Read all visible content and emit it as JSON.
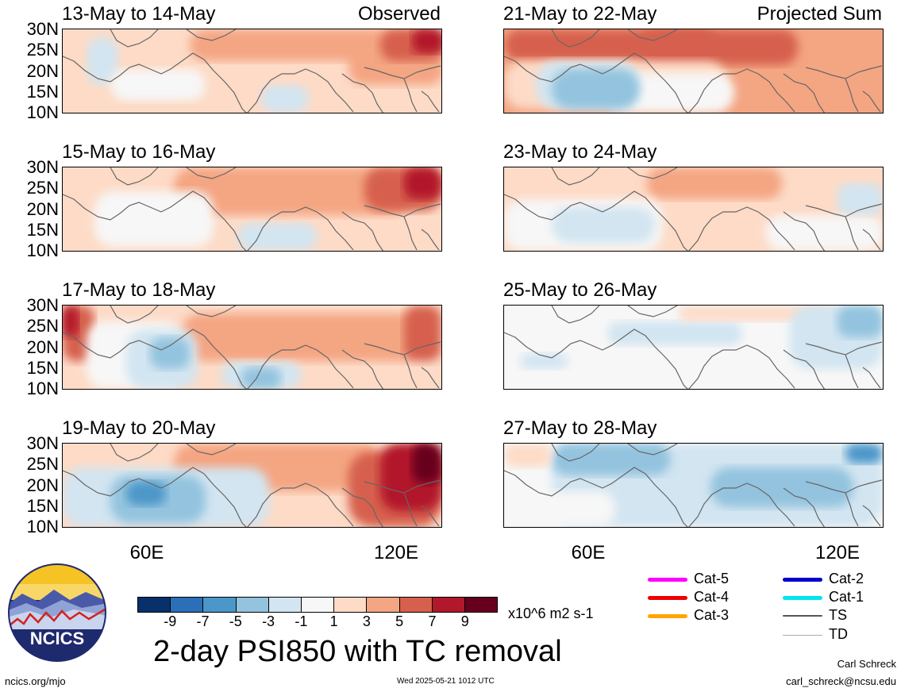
{
  "left_header_tag": "Observed",
  "right_header_tag": "Projected Sum",
  "y_tick_labels": [
    "30N",
    "25N",
    "20N",
    "15N",
    "10N"
  ],
  "x_tick_labels": [
    "60E",
    "120E"
  ],
  "panels": [
    {
      "title": "13-May to 14-May",
      "column": "left",
      "row": 0
    },
    {
      "title": "15-May to 16-May",
      "column": "left",
      "row": 1
    },
    {
      "title": "17-May to 18-May",
      "column": "left",
      "row": 2
    },
    {
      "title": "19-May to 20-May",
      "column": "left",
      "row": 3
    },
    {
      "title": "21-May to 22-May",
      "column": "right",
      "row": 0
    },
    {
      "title": "23-May to 24-May",
      "column": "right",
      "row": 1
    },
    {
      "title": "25-May to 26-May",
      "column": "right",
      "row": 2
    },
    {
      "title": "27-May to 28-May",
      "column": "right",
      "row": 3
    }
  ],
  "colorbar": {
    "colors": [
      "#08306b",
      "#2a6fb8",
      "#4b97c9",
      "#93c3de",
      "#d2e5f1",
      "#f7f7f7",
      "#fddbc7",
      "#f4a582",
      "#d6604d",
      "#b2182b",
      "#67001f"
    ],
    "labels": [
      "-9",
      "-7",
      "-5",
      "-3",
      "-1",
      "1",
      "3",
      "5",
      "7",
      "9"
    ],
    "units": "x10^6 m2 s-1"
  },
  "main_title": "2-day PSI850 with TC removal",
  "tc_legend": [
    {
      "label": "Cat-5",
      "color": "#ff00ff"
    },
    {
      "label": "Cat-4",
      "color": "#ee0000"
    },
    {
      "label": "Cat-3",
      "color": "#ffa500"
    },
    {
      "label": "Cat-2",
      "color": "#0000cd"
    },
    {
      "label": "Cat-1",
      "color": "#00e5ee"
    },
    {
      "label": "TS",
      "color": "#555555"
    },
    {
      "label": "TD",
      "color": "#aaaaaa"
    }
  ],
  "logo_text": "NCICS",
  "footer": {
    "url": "ncics.org/mjo",
    "timestamp": "Wed 2025-05-21 1012 UTC",
    "author": "Carl Schreck",
    "email": "carl_schreck@ncsu.edu"
  }
}
